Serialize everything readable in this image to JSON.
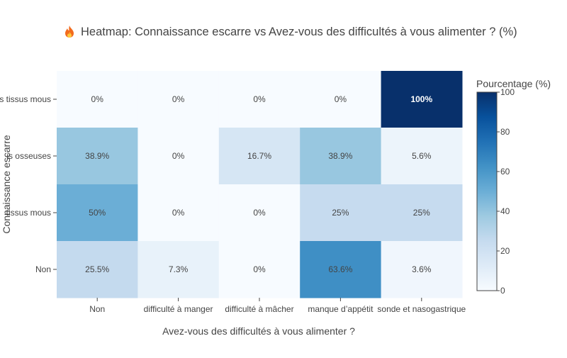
{
  "chart_data": {
    "type": "heatmap",
    "title": "Heatmap: Connaissance escarre vs Avez-vous des difficultés à vous alimenter ? (%)",
    "title_icon": "fire-icon",
    "xlabel": "Avez-vous des difficultés à vous alimenter ?",
    "ylabel": "Connaissance escarre",
    "x_categories": [
      "Non",
      "difficulté à manger",
      "difficulté à mâcher",
      "manque d’appétit",
      "sonde et nasogastrique"
    ],
    "y_categories": [
      "s tissus mous",
      "is osseuses",
      "tissus mous",
      "Non"
    ],
    "values": [
      [
        0,
        0,
        0,
        0,
        100
      ],
      [
        38.9,
        0,
        16.7,
        38.9,
        5.6
      ],
      [
        50,
        0,
        0,
        25,
        25
      ],
      [
        25.5,
        7.3,
        0,
        63.6,
        3.6
      ]
    ],
    "cell_labels": [
      [
        "0%",
        "0%",
        "0%",
        "0%",
        "100%"
      ],
      [
        "38.9%",
        "0%",
        "16.7%",
        "38.9%",
        "5.6%"
      ],
      [
        "50%",
        "0%",
        "0%",
        "25%",
        "25%"
      ],
      [
        "25.5%",
        "7.3%",
        "0%",
        "63.6%",
        "3.6%"
      ]
    ],
    "colorbar": {
      "title": "Pourcentage (%)",
      "range": [
        0,
        100
      ],
      "ticks": [
        0,
        20,
        40,
        60,
        80,
        100
      ]
    },
    "colorscale": [
      "#f7fbff",
      "#deebf7",
      "#c6dbef",
      "#9ecae1",
      "#6baed6",
      "#4292c6",
      "#2171b5",
      "#08519c",
      "#08306b"
    ]
  }
}
